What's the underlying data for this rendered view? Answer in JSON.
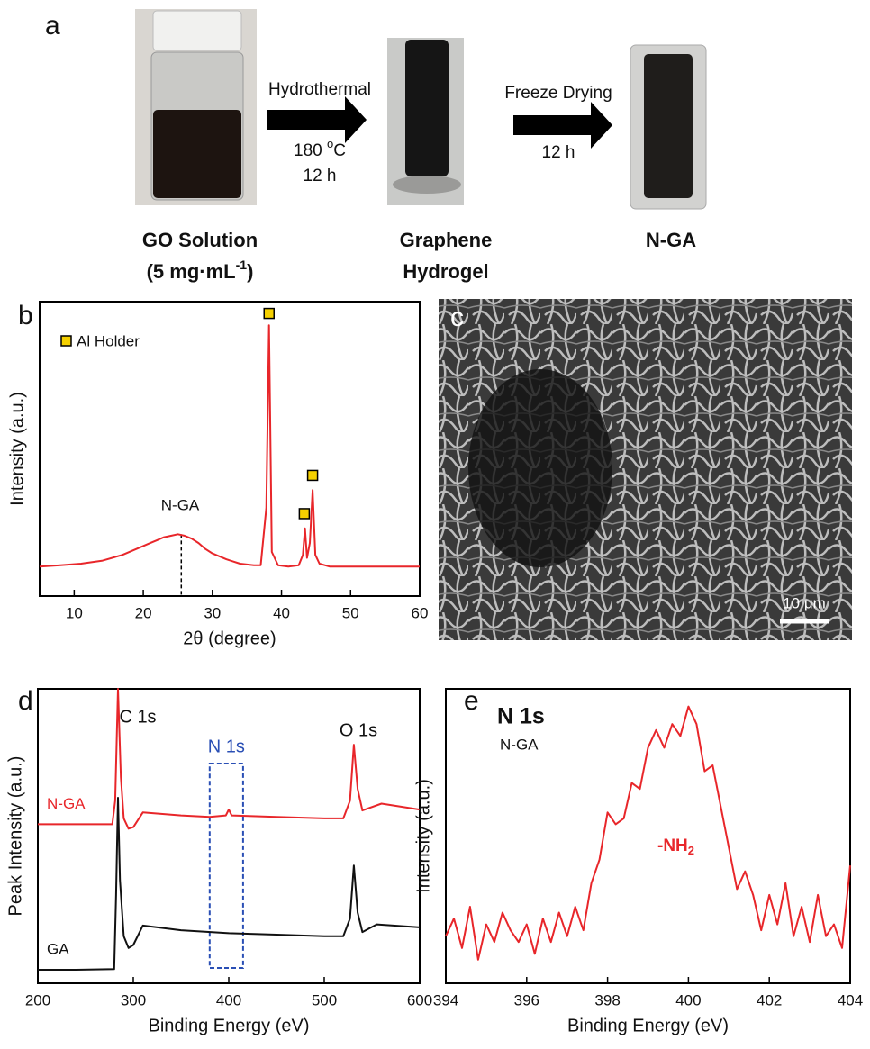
{
  "panel_a": {
    "label": "a",
    "steps": [
      {
        "method": "Hydrothermal",
        "temperature": {
          "number": "180 ",
          "sup": "o",
          "unit": "C"
        },
        "time": "12 h"
      },
      {
        "method": "Freeze Drying",
        "time": "12 h"
      }
    ],
    "samples": [
      {
        "name": "GO Solution",
        "detail": {
          "main": "(5 mg·mL",
          "sup": "-1",
          "end": ")"
        }
      },
      {
        "name": "Graphene",
        "detail": "Hydrogel"
      },
      {
        "name": "N-GA"
      }
    ]
  },
  "panel_c": {
    "label": "c",
    "scale_bar": "10 μm"
  },
  "chart_data": [
    {
      "type": "line",
      "label": "b",
      "xlabel": "2θ (degree)",
      "ylabel": "Intensity (a.u.)",
      "xlim": [
        5,
        60
      ],
      "xticks": [
        10,
        20,
        30,
        40,
        50,
        60
      ],
      "ylim": [
        0,
        100
      ],
      "legend": "top-left",
      "x": [
        5,
        8,
        11,
        14,
        17,
        19,
        21,
        22,
        23,
        24,
        25,
        26,
        27,
        28,
        29,
        30,
        32,
        34,
        36,
        37,
        37.8,
        38.2,
        38.6,
        39.5,
        41,
        42.5,
        43.1,
        43.4,
        43.7,
        44.1,
        44.5,
        44.9,
        45.5,
        47,
        50,
        53,
        56,
        60
      ],
      "series": [
        {
          "name": "N-GA",
          "color": "#e8262a",
          "values": [
            10,
            10.5,
            11,
            12,
            14,
            16,
            18,
            19,
            20,
            20.5,
            21,
            20.5,
            19.5,
            18,
            16,
            14.5,
            12.5,
            11,
            10.5,
            10.5,
            30,
            92,
            15,
            10.5,
            10,
            10.5,
            14,
            23,
            13,
            18,
            36,
            14,
            11,
            10,
            10,
            10,
            10,
            10
          ]
        }
      ],
      "markers": {
        "name": "Al Holder",
        "color": "#f5d000",
        "x": [
          38.2,
          43.3,
          44.5
        ],
        "y": [
          96,
          28,
          41
        ]
      },
      "peak_x": 25.5
    },
    {
      "type": "line",
      "label": "d",
      "xlabel": "Binding Energy (eV)",
      "ylabel": "Peak Intensity (a.u.)",
      "xlim": [
        200,
        600
      ],
      "xticks": [
        200,
        300,
        400,
        500,
        600
      ],
      "ylim": [
        0,
        100
      ],
      "series": [
        {
          "name": "N-GA",
          "color": "#e8262a",
          "x": [
            200,
            240,
            278,
            281,
            284,
            287,
            290,
            295,
            300,
            310,
            350,
            380,
            397,
            400,
            403,
            450,
            500,
            520,
            527,
            531,
            535,
            540,
            560,
            600
          ],
          "values": [
            54,
            54,
            54,
            62,
            100,
            70,
            56,
            52.5,
            53,
            58,
            57,
            56.5,
            57,
            59,
            57,
            56.5,
            56,
            56,
            62,
            81,
            66,
            58.7,
            61,
            59
          ]
        },
        {
          "name": "GA",
          "color": "#111111",
          "x": [
            200,
            240,
            280,
            282,
            284,
            286,
            290,
            295,
            300,
            310,
            350,
            400,
            450,
            500,
            520,
            527,
            531,
            535,
            540,
            555,
            600
          ],
          "values": [
            4.6,
            4.6,
            4.8,
            30,
            63,
            35,
            16,
            12,
            13,
            19.6,
            18,
            17,
            16.5,
            16,
            16,
            22,
            40,
            24,
            17.4,
            20,
            19
          ]
        }
      ],
      "peak_labels": [
        "C 1s",
        "O 1s"
      ],
      "highlight": {
        "label": "N 1s",
        "color": "#2a4fb5",
        "range": [
          380,
          415
        ]
      }
    },
    {
      "type": "line",
      "label": "e",
      "title": "N 1s",
      "subtitle": "N-GA",
      "xlabel": "Binding Energy (eV)",
      "ylabel": "Intensity (a.u.)",
      "xlim": [
        394,
        404
      ],
      "xticks": [
        394,
        396,
        398,
        400,
        402,
        404
      ],
      "ylim": [
        0,
        100
      ],
      "annotation": {
        "main": "-NH",
        "sub": "2"
      },
      "x": [
        394,
        394.2,
        394.4,
        394.6,
        394.8,
        395,
        395.2,
        395.4,
        395.6,
        395.8,
        396,
        396.2,
        396.4,
        396.6,
        396.8,
        397,
        397.2,
        397.4,
        397.6,
        397.8,
        398,
        398.2,
        398.4,
        398.6,
        398.8,
        399,
        399.2,
        399.4,
        399.6,
        399.8,
        400,
        400.2,
        400.4,
        400.6,
        400.8,
        401,
        401.2,
        401.4,
        401.6,
        401.8,
        402,
        402.2,
        402.4,
        402.6,
        402.8,
        403,
        403.2,
        403.4,
        403.6,
        403.8,
        404
      ],
      "series": [
        {
          "name": "N-GA",
          "color": "#e8262a",
          "values": [
            16,
            22,
            12,
            26,
            8,
            20,
            14,
            24,
            18,
            14,
            20,
            10,
            22,
            14,
            24,
            16,
            26,
            18,
            34,
            42,
            58,
            54,
            56,
            68,
            66,
            80,
            86,
            80,
            88,
            84,
            94,
            88,
            72,
            74,
            60,
            46,
            32,
            38,
            30,
            18,
            30,
            20,
            34,
            16,
            26,
            14,
            30,
            16,
            20,
            12,
            40
          ]
        }
      ]
    }
  ]
}
